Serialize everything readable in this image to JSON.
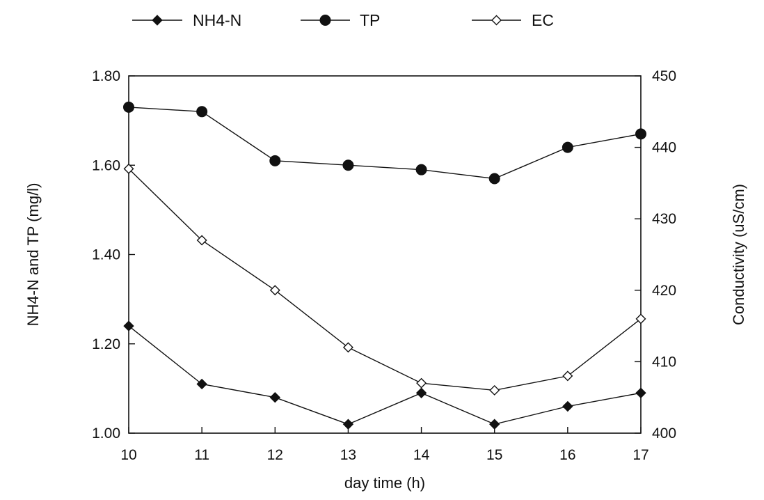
{
  "chart_data": {
    "type": "line",
    "title": "",
    "xlabel": "day time (h)",
    "ylabel_left": "NH4-N and TP (mg/l)",
    "ylabel_right": "Conductivity (uS/cm)",
    "x": [
      10,
      11,
      12,
      13,
      14,
      15,
      16,
      17
    ],
    "x_ticks": [
      "10",
      "11",
      "12",
      "13",
      "14",
      "15",
      "16",
      "17"
    ],
    "ylim_left": [
      1.0,
      1.8
    ],
    "y_ticks_left": [
      "1.00",
      "1.20",
      "1.40",
      "1.60",
      "1.80"
    ],
    "ylim_right": [
      400,
      450
    ],
    "y_ticks_right": [
      "400",
      "410",
      "420",
      "430",
      "440",
      "450"
    ],
    "grid": false,
    "legend_position": "top",
    "series": [
      {
        "name": "NH4-N",
        "axis": "left",
        "marker": "filled-diamond",
        "values": [
          1.24,
          1.11,
          1.08,
          1.02,
          1.09,
          1.02,
          1.06,
          1.09
        ]
      },
      {
        "name": "TP",
        "axis": "left",
        "marker": "filled-circle",
        "values": [
          1.73,
          1.72,
          1.61,
          1.6,
          1.59,
          1.57,
          1.64,
          1.67
        ]
      },
      {
        "name": "EC",
        "axis": "right",
        "marker": "open-diamond",
        "values": [
          437,
          427,
          420,
          412,
          407,
          406,
          408,
          416
        ]
      }
    ]
  }
}
